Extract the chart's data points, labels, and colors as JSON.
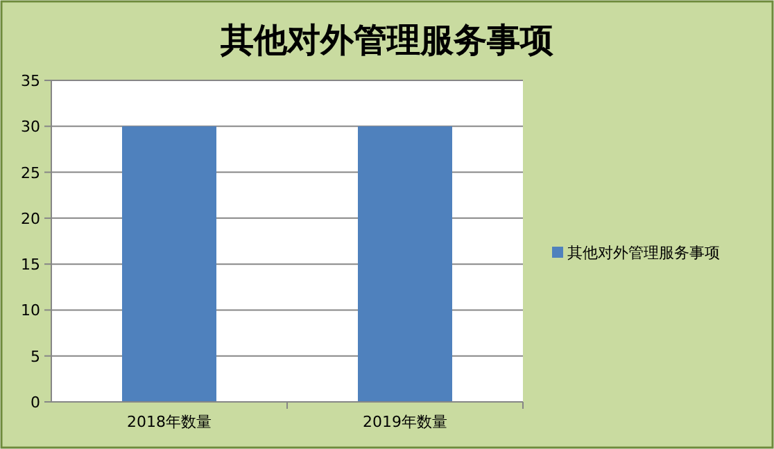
{
  "chart_data": {
    "type": "bar",
    "title": "其他对外管理服务事项",
    "categories": [
      "2018年数量",
      "2019年数量"
    ],
    "series": [
      {
        "name": "其他对外管理服务事项",
        "color": "#4f81bd",
        "values": [
          30,
          30
        ]
      }
    ],
    "ylim": [
      0,
      35
    ],
    "yticks": [
      0,
      5,
      10,
      15,
      20,
      25,
      30,
      35
    ],
    "grid": "y",
    "legend": "right"
  }
}
